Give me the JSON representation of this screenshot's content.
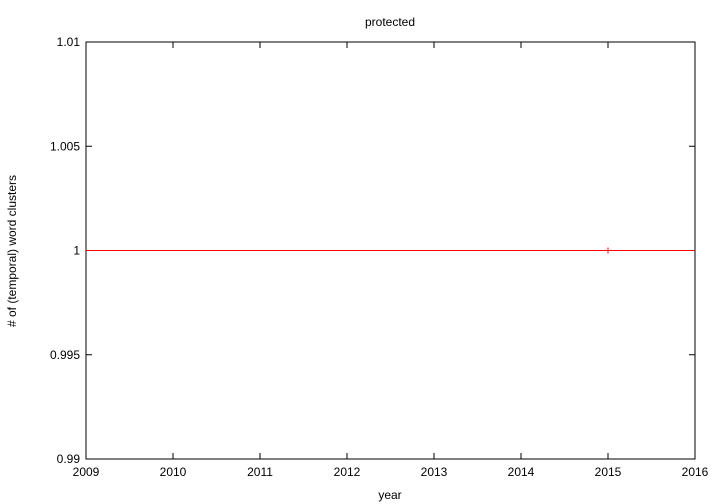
{
  "chart_data": {
    "type": "line",
    "title": "protected",
    "xlabel": "year",
    "ylabel": "# of (temporal) word clusters",
    "xlim": [
      2009,
      2016
    ],
    "ylim": [
      0.99,
      1.01
    ],
    "x_ticks": [
      "2009",
      "2010",
      "2011",
      "2012",
      "2013",
      "2014",
      "2015",
      "2016"
    ],
    "y_ticks": [
      "0.99",
      "0.995",
      "1",
      "1.005",
      "1.01"
    ],
    "grid": false,
    "legend": "none",
    "series": [
      {
        "color": "#ff0000",
        "x": [
          2015
        ],
        "y": [
          1
        ]
      }
    ]
  }
}
